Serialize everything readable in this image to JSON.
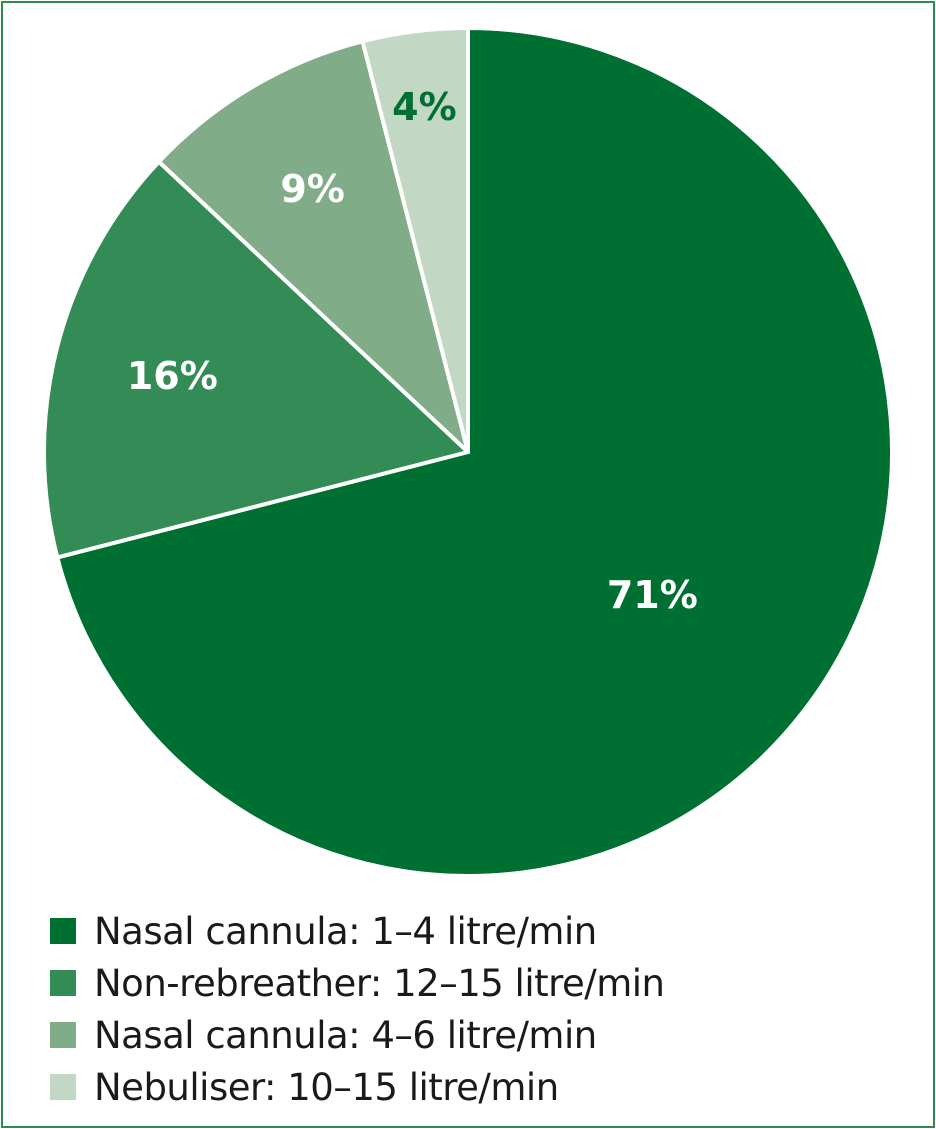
{
  "chart_data": {
    "type": "pie",
    "title": "",
    "slices": [
      {
        "label": "Nasal cannula: 1–4 litre/min",
        "value": 71,
        "value_label": "71%",
        "color": "#006f32",
        "label_color": "#ffffff"
      },
      {
        "label": "Non-rebreather: 12–15 litre/min",
        "value": 16,
        "value_label": "16%",
        "color": "#338b55",
        "label_color": "#ffffff"
      },
      {
        "label": "Nasal cannula: 4–6 litre/min",
        "value": 9,
        "value_label": "9%",
        "color": "#80ad88",
        "label_color": "#ffffff"
      },
      {
        "label": "Nebuliser: 10–15 litre/min",
        "value": 4,
        "value_label": "4%",
        "color": "#c3d8c4",
        "label_color": "#006f32"
      }
    ],
    "legend_position": "bottom-left",
    "start": "top, clockwise"
  },
  "border_color": "#2e8b4e"
}
